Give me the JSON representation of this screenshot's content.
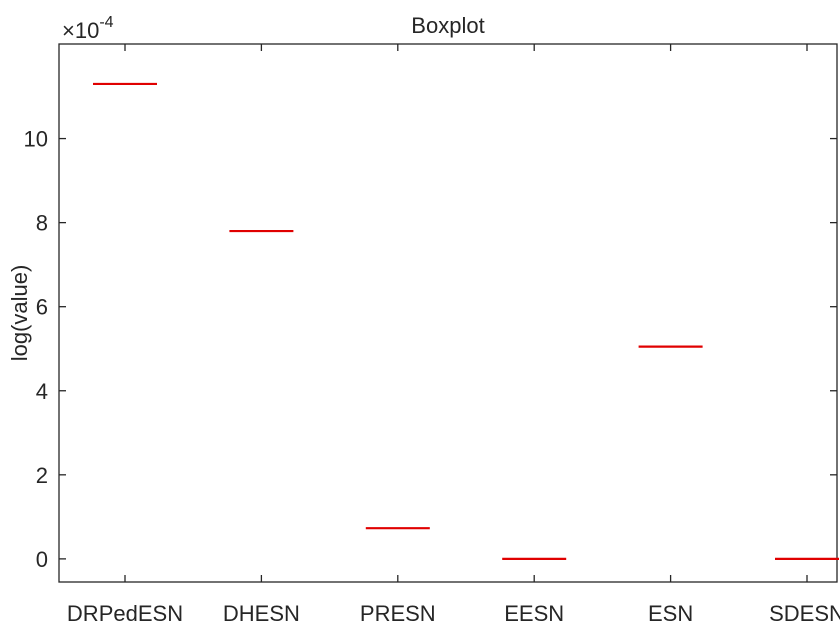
{
  "chart_data": {
    "type": "boxplot",
    "title": "Boxplot",
    "xlabel": "",
    "ylabel": "log(value)",
    "y_multiplier_base": "×10",
    "y_multiplier_exponent": "-4",
    "categories": [
      "DRPedESN",
      "DHESN",
      "PRESN",
      "EESN",
      "ESN",
      "SDESN"
    ],
    "medians": [
      11.3,
      7.8,
      0.73,
      0.0,
      5.05,
      0.0
    ],
    "y_scale_factor": 0.0001,
    "ylim": [
      -0.55,
      12.25
    ],
    "yticks": [
      0,
      2,
      4,
      6,
      8,
      10
    ],
    "ytick_labels": [
      "0",
      "2",
      "4",
      "6",
      "8",
      "10"
    ],
    "median_color": "#e00000",
    "axis_color": "#262626",
    "grid": false,
    "legend": "none"
  }
}
